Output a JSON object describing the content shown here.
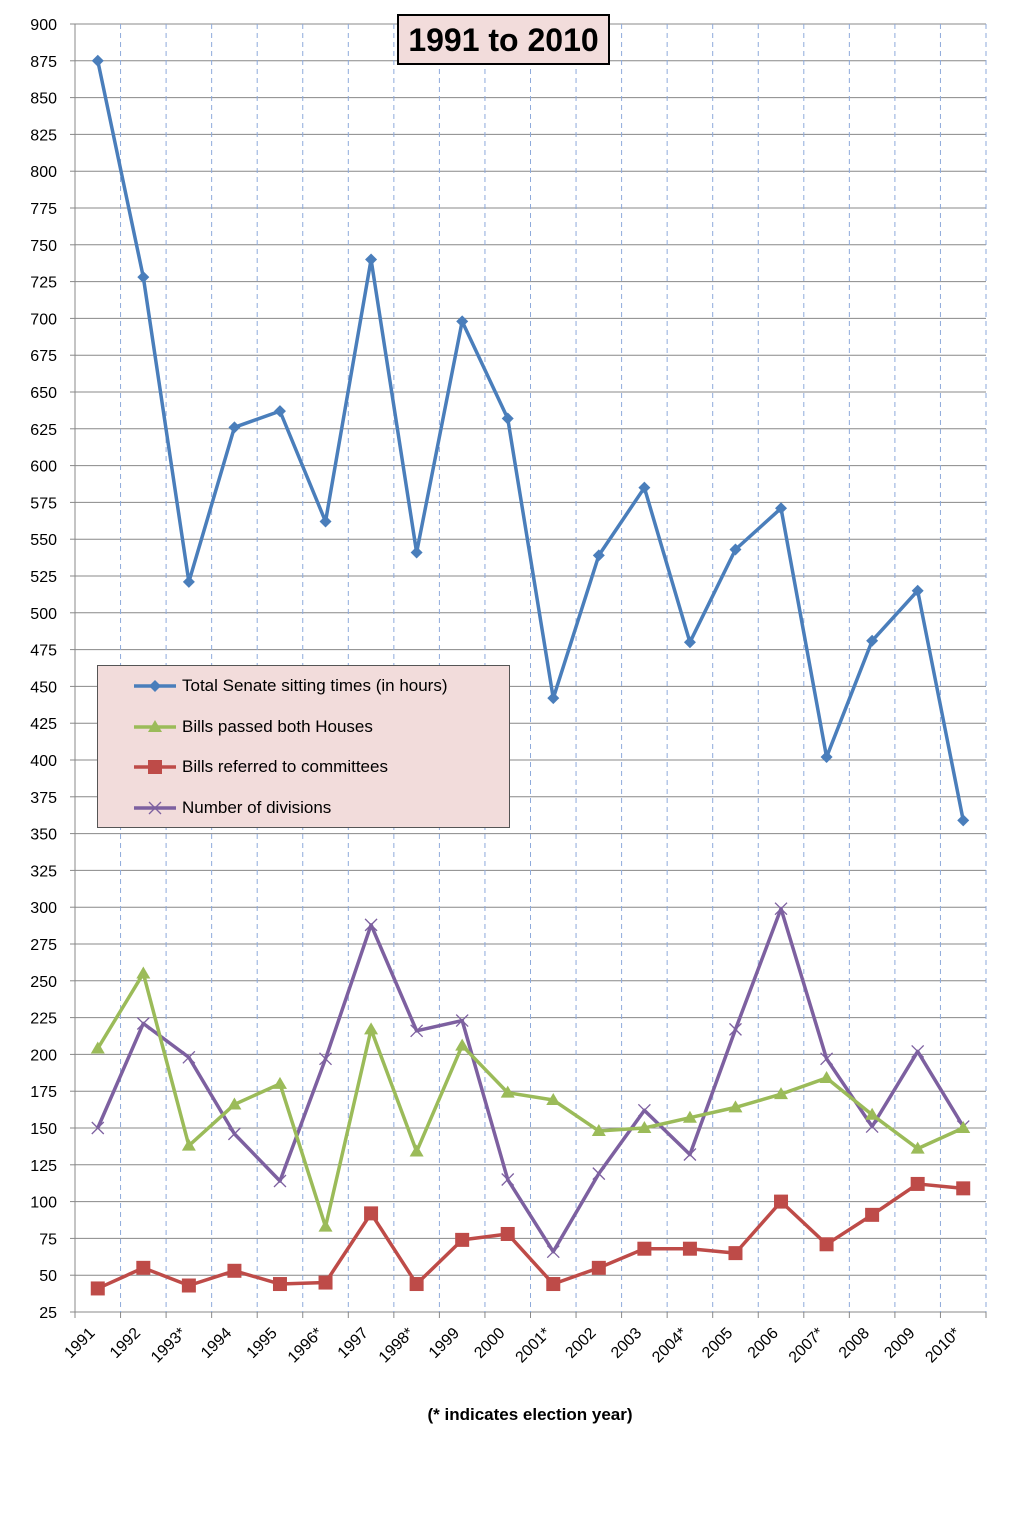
{
  "chart_data": {
    "type": "line",
    "title": "1991 to 2010",
    "note": "(* indicates election year)",
    "categories": [
      "1991",
      "1992",
      "1993*",
      "1994",
      "1995",
      "1996*",
      "1997",
      "1998*",
      "1999",
      "2000",
      "2001*",
      "2002",
      "2003",
      "2004*",
      "2005",
      "2006",
      "2007*",
      "2008",
      "2009",
      "2010*"
    ],
    "ylim": [
      25,
      900
    ],
    "ytick_step": 25,
    "grid": true,
    "legend_position": "center-left",
    "series": [
      {
        "name": "Total Senate sitting times (in hours)",
        "color": "#4a7ebb",
        "marker": "diamond",
        "values": [
          875,
          728,
          521,
          626,
          637,
          562,
          740,
          541,
          698,
          632,
          442,
          539,
          585,
          480,
          543,
          571,
          402,
          481,
          515,
          359
        ]
      },
      {
        "name": "Bills passed both Houses",
        "color": "#9bbb59",
        "marker": "triangle",
        "values": [
          204,
          255,
          138,
          166,
          180,
          83,
          217,
          134,
          206,
          174,
          169,
          148,
          150,
          157,
          164,
          173,
          184,
          159,
          136,
          150
        ]
      },
      {
        "name": "Bills referred to committees",
        "color": "#be4b48",
        "marker": "square",
        "values": [
          41,
          55,
          43,
          53,
          44,
          45,
          92,
          44,
          74,
          78,
          44,
          55,
          68,
          68,
          65,
          100,
          71,
          91,
          112,
          109
        ]
      },
      {
        "name": "Number of divisions",
        "color": "#7d60a0",
        "marker": "x",
        "values": [
          150,
          221,
          198,
          146,
          114,
          197,
          288,
          216,
          223,
          115,
          66,
          119,
          162,
          132,
          217,
          299,
          197,
          151,
          202,
          151
        ]
      }
    ]
  }
}
